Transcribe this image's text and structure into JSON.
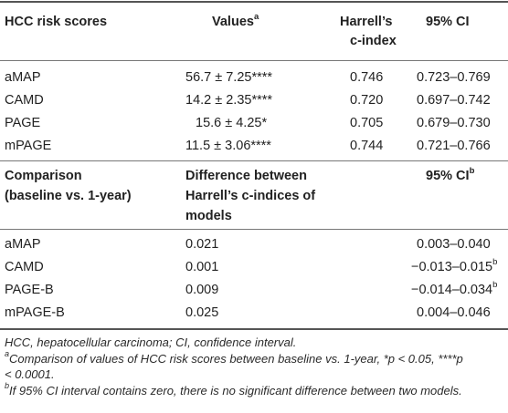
{
  "table1": {
    "headers": {
      "col1": "HCC risk scores",
      "col2": "Values",
      "col2_sup": "a",
      "col3_line1": "Harrell’s",
      "col3_line2": "c-index",
      "col4": "95% CI"
    },
    "rows": [
      {
        "name": "aMAP",
        "value": "56.7 ± 7.25****",
        "cindex": "0.746",
        "ci": "0.723–0.769"
      },
      {
        "name": "CAMD",
        "value": "14.2 ± 2.35****",
        "cindex": "0.720",
        "ci": "0.697–0.742"
      },
      {
        "name": "PAGE",
        "value": "15.6 ± 4.25*",
        "cindex": "0.705",
        "ci": "0.679–0.730"
      },
      {
        "name": "mPAGE",
        "value": "11.5 ± 3.06****",
        "cindex": "0.744",
        "ci": "0.721–0.766"
      }
    ]
  },
  "table2": {
    "headers": {
      "col1_line1": "Comparison",
      "col1_line2": "(baseline vs. 1-year)",
      "col2_line1": "Difference between",
      "col2_line2": "Harrell’s c-indices of",
      "col2_line3": "models",
      "col3": "95% CI",
      "col3_sup": "b"
    },
    "rows": [
      {
        "name": "aMAP",
        "diff": "0.021",
        "ci": "0.003–0.040",
        "sup": ""
      },
      {
        "name": "CAMD",
        "diff": "0.001",
        "ci": "−0.013–0.015",
        "sup": "b"
      },
      {
        "name": "PAGE-B",
        "diff": "0.009",
        "ci": "−0.014–0.034",
        "sup": "b"
      },
      {
        "name": "mPAGE-B",
        "diff": "0.025",
        "ci": "0.004–0.046",
        "sup": ""
      }
    ]
  },
  "footnotes": {
    "abbrev": "HCC, hepatocellular carcinoma; CI, confidence interval.",
    "a_marker": "a",
    "a_text_line1": "Comparison of values of HCC risk scores between baseline vs. 1-year, *p < 0.05, ****p",
    "a_text_line2": "< 0.0001.",
    "b_marker": "b",
    "b_text": "If 95% CI interval contains zero, there is no significant difference between two models."
  }
}
